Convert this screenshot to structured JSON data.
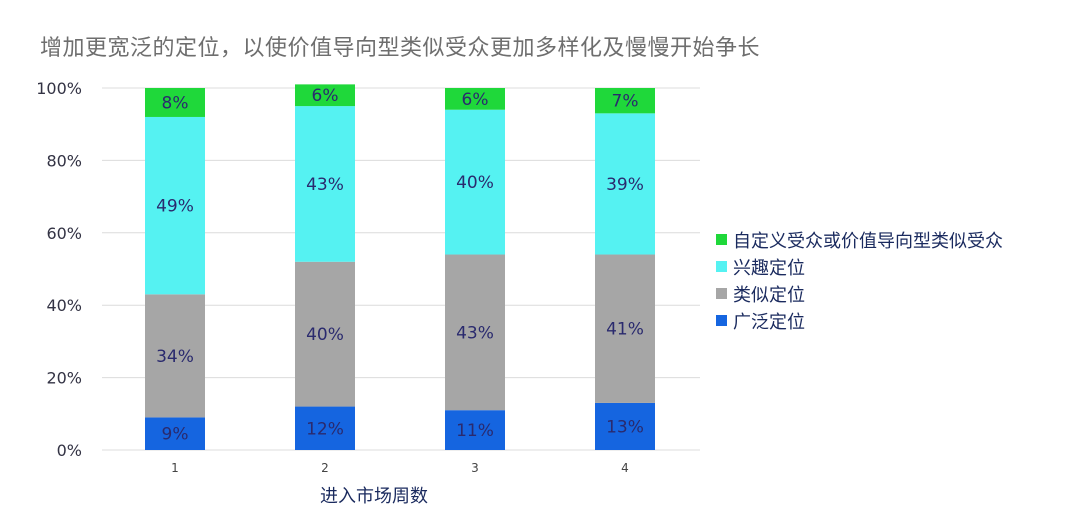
{
  "chart_data": {
    "type": "bar",
    "stacked": true,
    "title": "增加更宽泛的定位，以使价值导向型类似受众更加多样化及慢慢开始争长",
    "xlabel": "进入市场周数",
    "ylabel": "",
    "categories": [
      "1",
      "2",
      "3",
      "4"
    ],
    "ylim": [
      0,
      100
    ],
    "yticks": [
      "0%",
      "20%",
      "40%",
      "60%",
      "80%",
      "100%"
    ],
    "series": [
      {
        "name": "广泛定位",
        "color": "#1565e0",
        "values": [
          9,
          12,
          11,
          13
        ],
        "labels": [
          "9%",
          "12%",
          "11%",
          "13%"
        ]
      },
      {
        "name": "类似定位",
        "color": "#a6a6a6",
        "values": [
          34,
          40,
          43,
          41
        ],
        "labels": [
          "34%",
          "40%",
          "43%",
          "41%"
        ]
      },
      {
        "name": "兴趣定位",
        "color": "#55f2f2",
        "values": [
          49,
          43,
          40,
          39
        ],
        "labels": [
          "49%",
          "43%",
          "40%",
          "39%"
        ]
      },
      {
        "name": "自定义受众或价值导向型类似受众",
        "color": "#1fd83a",
        "values": [
          8,
          6,
          6,
          7
        ],
        "labels": [
          "8%",
          "6%",
          "6%",
          "7%"
        ]
      }
    ],
    "legend_order": [
      3,
      2,
      1,
      0
    ],
    "grid": true,
    "legend_position": "right"
  }
}
